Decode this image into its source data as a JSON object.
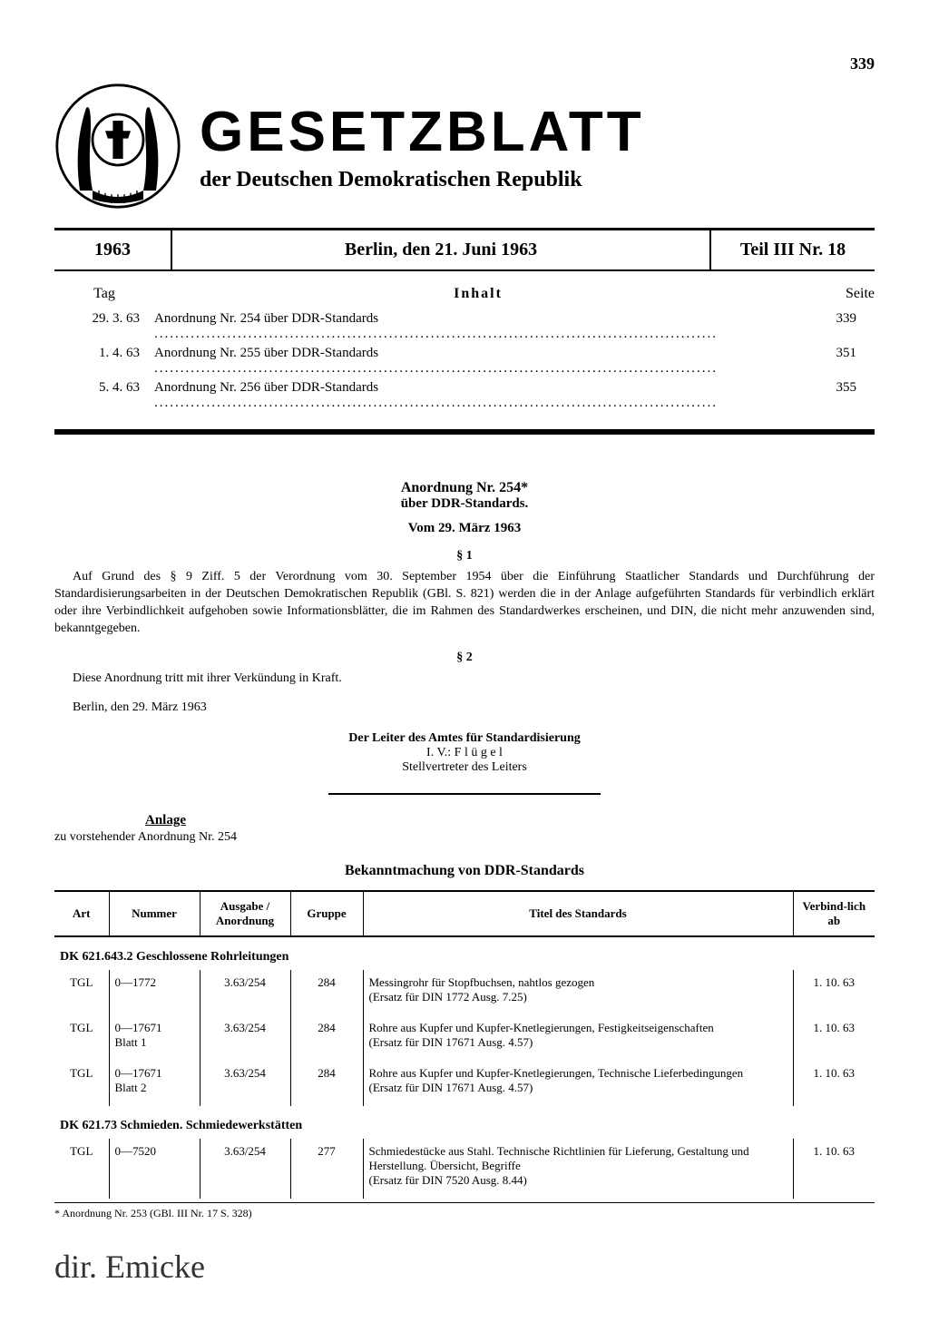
{
  "page_number": "339",
  "masthead": {
    "title": "GESETZBLATT",
    "subtitle": "der Deutschen Demokratischen Republik"
  },
  "issue": {
    "year": "1963",
    "place_date": "Berlin, den 21. Juni 1963",
    "part": "Teil III Nr. 18"
  },
  "toc": {
    "header_day": "Tag",
    "header_content": "Inhalt",
    "header_page": "Seite",
    "rows": [
      {
        "date": "29. 3. 63",
        "title": "Anordnung Nr. 254 über DDR-Standards",
        "page": "339"
      },
      {
        "date": "1. 4. 63",
        "title": "Anordnung Nr. 255 über DDR-Standards",
        "page": "351"
      },
      {
        "date": "5. 4. 63",
        "title": "Anordnung Nr. 256 über DDR-Standards",
        "page": "355"
      }
    ]
  },
  "decree": {
    "title": "Anordnung Nr. 254*",
    "subject": "über DDR-Standards.",
    "date": "Vom 29. März 1963",
    "para1_label": "§ 1",
    "para1_text": "Auf Grund des § 9 Ziff. 5 der Verordnung vom 30. September 1954 über die Einführung Staatlicher Standards und Durchführung der Standardisierungsarbeiten in der Deutschen Demokratischen Republik (GBl. S. 821) werden die in der Anlage aufgeführten Standards für verbindlich erklärt oder ihre Verbindlichkeit aufgehoben sowie Informationsblätter, die im Rahmen des Standardwerkes erscheinen, und DIN, die nicht mehr anzuwenden sind, bekanntgegeben.",
    "para2_label": "§ 2",
    "para2_text": "Diese Anordnung tritt mit ihrer Verkündung in Kraft.",
    "signing_place_date": "Berlin, den 29. März 1963",
    "signing_office": "Der Leiter des Amtes für Standardisierung",
    "signing_iv": "I. V.: F l ü g e l",
    "signing_role": "Stellvertreter des Leiters"
  },
  "anlage": {
    "label": "Anlage",
    "sub": "zu vorstehender Anordnung Nr. 254",
    "heading": "Bekanntmachung von DDR-Standards"
  },
  "std_table": {
    "headers": {
      "art": "Art",
      "nummer": "Nummer",
      "ausgabe": "Ausgabe / Anordnung",
      "gruppe": "Gruppe",
      "titel": "Titel des Standards",
      "verbindlich": "Verbind-lich ab"
    },
    "sections": [
      {
        "heading": "DK 621.643.2 Geschlossene Rohrleitungen",
        "rows": [
          {
            "art": "TGL",
            "num": "0—1772",
            "ausg": "3.63/254",
            "grp": "284",
            "title": "Messingrohr für Stopfbuchsen, nahtlos gezogen\n(Ersatz für DIN 1772 Ausg. 7.25)",
            "date": "1. 10. 63"
          },
          {
            "art": "TGL",
            "num": "0—17671\nBlatt 1",
            "ausg": "3.63/254",
            "grp": "284",
            "title": "Rohre aus Kupfer und Kupfer-Knetlegierungen, Festigkeitseigenschaften\n(Ersatz für DIN 17671 Ausg. 4.57)",
            "date": "1. 10. 63"
          },
          {
            "art": "TGL",
            "num": "0—17671\nBlatt 2",
            "ausg": "3.63/254",
            "grp": "284",
            "title": "Rohre aus Kupfer und Kupfer-Knetlegierungen, Technische Lieferbedingungen\n(Ersatz für DIN 17671 Ausg. 4.57)",
            "date": "1. 10. 63"
          }
        ]
      },
      {
        "heading": "DK 621.73 Schmieden. Schmiedewerkstätten",
        "rows": [
          {
            "art": "TGL",
            "num": "0—7520",
            "ausg": "3.63/254",
            "grp": "277",
            "title": "Schmiedestücke aus Stahl. Technische Richtlinien für Lieferung, Gestaltung und Herstellung. Übersicht, Begriffe\n(Ersatz für DIN 7520 Ausg. 8.44)",
            "date": "1. 10. 63"
          }
        ]
      }
    ]
  },
  "footnote": "* Anordnung Nr. 253 (GBl. III Nr. 17 S. 328)",
  "handwriting": "dir. Emicke"
}
